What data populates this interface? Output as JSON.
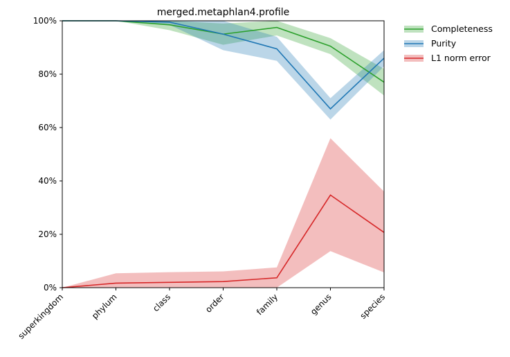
{
  "chart_data": {
    "type": "line",
    "title": "merged.metaphlan4.profile",
    "xlabel": "",
    "ylabel": "",
    "categories": [
      "superkingdom",
      "phylum",
      "class",
      "order",
      "family",
      "genus",
      "species"
    ],
    "ylim": [
      0,
      100
    ],
    "yticks": [
      "0%",
      "20%",
      "40%",
      "60%",
      "80%",
      "100%"
    ],
    "grid": false,
    "legend_position": "outside top-right",
    "series": [
      {
        "name": "Completeness",
        "color": "#2ca02c",
        "values": [
          100,
          100,
          98.5,
          95,
          97.5,
          90.5,
          77
        ],
        "band_lower": [
          100,
          100,
          96.5,
          91,
          94.5,
          87.5,
          72
        ],
        "band_upper": [
          100,
          100,
          100,
          99,
          100,
          93.5,
          82
        ]
      },
      {
        "name": "Purity",
        "color": "#1f77b4",
        "values": [
          100,
          100,
          99.5,
          95,
          89.5,
          67,
          86
        ],
        "band_lower": [
          100,
          100,
          98.5,
          89,
          85,
          63,
          83
        ],
        "band_upper": [
          100,
          100,
          100,
          100,
          94,
          71,
          89
        ]
      },
      {
        "name": "L1 norm error",
        "color": "#d62728",
        "values": [
          0,
          1.7,
          2.0,
          2.3,
          3.7,
          34.7,
          20.7
        ],
        "band_lower": [
          0,
          0,
          0,
          0,
          0,
          13.7,
          5.7
        ],
        "band_upper": [
          0,
          5.4,
          5.8,
          6.1,
          7.6,
          56,
          36
        ]
      }
    ]
  }
}
